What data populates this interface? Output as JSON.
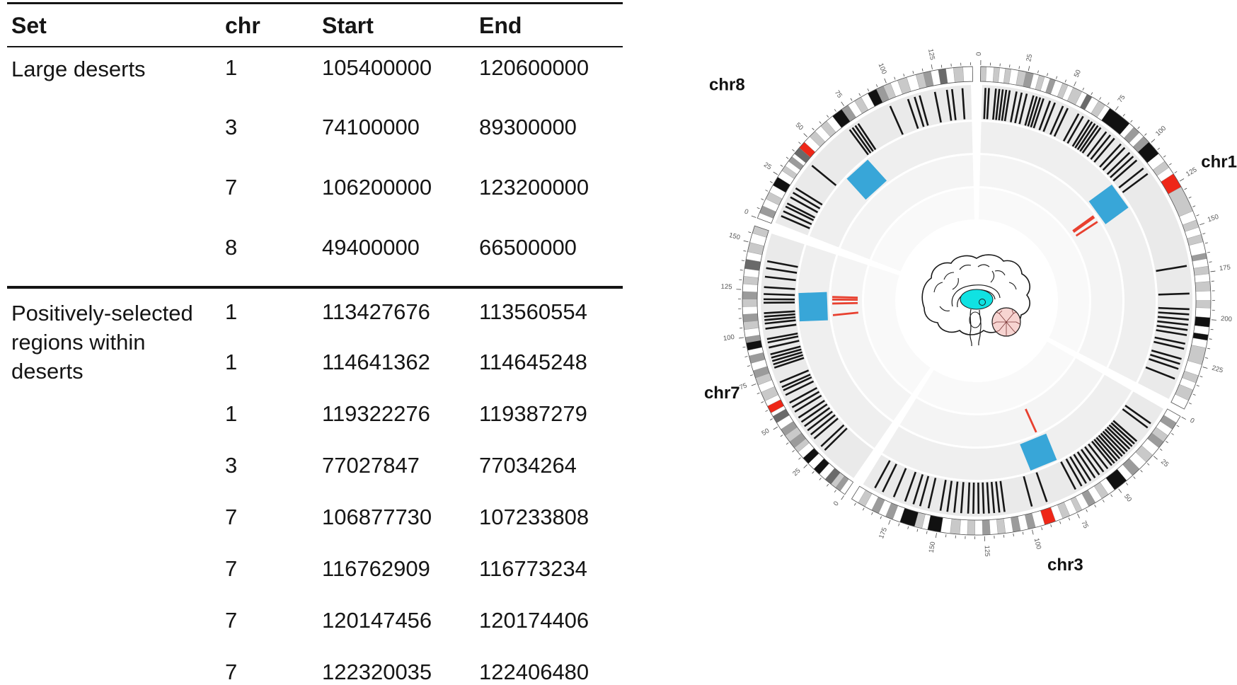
{
  "table": {
    "headers": [
      "Set",
      "chr",
      "Start",
      "End"
    ],
    "groups": [
      {
        "set": "Large deserts",
        "rows": [
          [
            "1",
            "105400000",
            "120600000"
          ],
          [
            "3",
            "74100000",
            "89300000"
          ],
          [
            "7",
            "106200000",
            "123200000"
          ],
          [
            "8",
            "49400000",
            "66500000"
          ]
        ]
      },
      {
        "set": "Positively-selected regions within deserts",
        "rows": [
          [
            "1",
            "113427676",
            "113560554"
          ],
          [
            "1",
            "114641362",
            "114645248"
          ],
          [
            "1",
            "119322276",
            "119387279"
          ],
          [
            "3",
            "77027847",
            "77034264"
          ],
          [
            "7",
            "106877730",
            "107233808"
          ],
          [
            "7",
            "116762909",
            "116773234"
          ],
          [
            "7",
            "120147456",
            "120174406"
          ],
          [
            "7",
            "122320035",
            "122406480"
          ]
        ]
      }
    ]
  },
  "chart_data": {
    "type": "circos",
    "description": "Circular ideogram of human chromosomes 1, 3, 7 and 8, clockwise from top. Tracks outside-in: cytogenetic band ideogram with red centromeres and 25-Mb scale labels; ring of black radial region marks; ring with one blue square per large desert; ring with red radial lines at positively-selected regions; empty inner ring. Center: sagittal brain with thalamus highlighted cyan and cerebellum pink.",
    "direction": "clockwise",
    "start_angle_deg": 0,
    "gap_deg": 2,
    "tick_interval_mb": 5,
    "tick_label_interval_mb": 25,
    "tracks": [
      {
        "name": "ideogram",
        "content": "cytogenetic bands, red centromere"
      },
      {
        "name": "region-marks",
        "content": "black radial tick marks"
      },
      {
        "name": "large-deserts",
        "content": "blue square per desert"
      },
      {
        "name": "selected-regions",
        "content": "red radial lines"
      },
      {
        "name": "inner-ring",
        "content": "empty"
      }
    ],
    "chromosomes": [
      {
        "name": "chr1",
        "length_mb": 249,
        "label_angle_deg": 59.3,
        "label_radius": 369,
        "desert_mb": [
          105.4,
          120.6
        ],
        "selected_mb": [
          113.43,
          114.64,
          119.32
        ],
        "marks_mb": [
          3,
          5,
          9,
          11,
          13,
          15,
          17,
          21,
          24,
          27,
          31,
          33,
          35,
          37,
          41,
          44,
          49,
          52,
          59,
          62,
          66,
          68,
          70,
          72,
          74,
          78,
          81,
          84,
          89,
          92,
          96,
          99,
          102,
          108,
          112,
          170,
          186,
          195,
          198,
          201,
          204,
          207,
          210,
          215,
          218,
          224,
          227,
          230,
          236
        ],
        "bands": [
          [
            0,
            3,
            "l"
          ],
          [
            3,
            7,
            "w"
          ],
          [
            7,
            10,
            "l"
          ],
          [
            10,
            13,
            "w"
          ],
          [
            13,
            16,
            "l"
          ],
          [
            16,
            20,
            "w"
          ],
          [
            20,
            24,
            "l"
          ],
          [
            24,
            28,
            "m"
          ],
          [
            28,
            31,
            "w"
          ],
          [
            31,
            34,
            "l"
          ],
          [
            34,
            37,
            "w"
          ],
          [
            37,
            40,
            "m"
          ],
          [
            40,
            44,
            "w"
          ],
          [
            44,
            47,
            "l"
          ],
          [
            47,
            50,
            "w"
          ],
          [
            50,
            55,
            "l"
          ],
          [
            55,
            58,
            "w"
          ],
          [
            58,
            61,
            "d"
          ],
          [
            61,
            65,
            "w"
          ],
          [
            65,
            69,
            "l"
          ],
          [
            69,
            72,
            "w"
          ],
          [
            72,
            85,
            "b"
          ],
          [
            85,
            88,
            "w"
          ],
          [
            88,
            92,
            "m"
          ],
          [
            92,
            95,
            "w"
          ],
          [
            95,
            99,
            "m"
          ],
          [
            99,
            107,
            "b"
          ],
          [
            107,
            112,
            "w"
          ],
          [
            112,
            116,
            "l"
          ],
          [
            116,
            120,
            "w"
          ],
          [
            120,
            128,
            "r"
          ],
          [
            128,
            142,
            "l"
          ],
          [
            142,
            147,
            "w"
          ],
          [
            147,
            151,
            "l"
          ],
          [
            151,
            155,
            "w"
          ],
          [
            155,
            159,
            "l"
          ],
          [
            159,
            165,
            "w"
          ],
          [
            165,
            168,
            "m"
          ],
          [
            168,
            172,
            "w"
          ],
          [
            172,
            176,
            "l"
          ],
          [
            176,
            180,
            "w"
          ],
          [
            180,
            185,
            "l"
          ],
          [
            185,
            190,
            "w"
          ],
          [
            190,
            194,
            "l"
          ],
          [
            194,
            199,
            "w"
          ],
          [
            199,
            204,
            "b"
          ],
          [
            204,
            208,
            "w"
          ],
          [
            208,
            211,
            "b"
          ],
          [
            211,
            215,
            "w"
          ],
          [
            215,
            224,
            "l"
          ],
          [
            224,
            230,
            "w"
          ],
          [
            230,
            234,
            "l"
          ],
          [
            234,
            238,
            "w"
          ],
          [
            238,
            244,
            "l"
          ],
          [
            244,
            249,
            "w"
          ]
        ]
      },
      {
        "name": "chr3",
        "length_mb": 198,
        "label_angle_deg": 165.3,
        "label_radius": 394,
        "desert_mb": [
          74.1,
          89.3
        ],
        "selected_mb": [
          77.03
        ],
        "marks_mb": [
          12,
          15,
          25,
          27,
          29,
          31,
          33,
          35,
          37,
          39,
          41,
          43,
          45,
          48,
          51,
          54,
          57,
          60,
          63,
          66,
          70,
          88,
          97,
          113,
          116,
          119,
          122,
          125,
          128,
          131,
          134,
          138,
          142,
          146,
          150,
          157,
          162,
          166,
          171,
          178,
          185,
          190
        ],
        "bands": [
          [
            0,
            4,
            "w"
          ],
          [
            4,
            8,
            "m"
          ],
          [
            8,
            12,
            "w"
          ],
          [
            12,
            16,
            "l"
          ],
          [
            16,
            20,
            "m"
          ],
          [
            20,
            25,
            "w"
          ],
          [
            25,
            30,
            "l"
          ],
          [
            30,
            35,
            "w"
          ],
          [
            35,
            40,
            "m"
          ],
          [
            40,
            44,
            "w"
          ],
          [
            44,
            52,
            "b"
          ],
          [
            52,
            56,
            "w"
          ],
          [
            56,
            60,
            "l"
          ],
          [
            60,
            64,
            "w"
          ],
          [
            64,
            68,
            "m"
          ],
          [
            68,
            72,
            "w"
          ],
          [
            72,
            75,
            "l"
          ],
          [
            75,
            79,
            "w"
          ],
          [
            79,
            83,
            "l"
          ],
          [
            83,
            87,
            "w"
          ],
          [
            87,
            93,
            "r"
          ],
          [
            93,
            98,
            "w"
          ],
          [
            98,
            102,
            "m"
          ],
          [
            102,
            106,
            "w"
          ],
          [
            106,
            110,
            "m"
          ],
          [
            110,
            114,
            "w"
          ],
          [
            114,
            118,
            "l"
          ],
          [
            118,
            122,
            "w"
          ],
          [
            122,
            126,
            "m"
          ],
          [
            126,
            130,
            "w"
          ],
          [
            130,
            134,
            "l"
          ],
          [
            134,
            138,
            "w"
          ],
          [
            138,
            143,
            "l"
          ],
          [
            143,
            148,
            "w"
          ],
          [
            148,
            155,
            "b"
          ],
          [
            155,
            158,
            "w"
          ],
          [
            158,
            162,
            "l"
          ],
          [
            162,
            170,
            "b"
          ],
          [
            170,
            174,
            "w"
          ],
          [
            174,
            178,
            "m"
          ],
          [
            178,
            182,
            "w"
          ],
          [
            182,
            186,
            "m"
          ],
          [
            186,
            190,
            "w"
          ],
          [
            190,
            194,
            "l"
          ],
          [
            194,
            198,
            "w"
          ]
        ]
      },
      {
        "name": "chr7",
        "length_mb": 159,
        "label_angle_deg": 250.3,
        "label_radius": 409,
        "desert_mb": [
          106.2,
          123.2
        ],
        "selected_mb": [
          106.88,
          116.76,
          120.15,
          122.32
        ],
        "marks_mb": [
          24,
          27,
          33,
          36,
          39,
          42,
          45,
          48,
          52,
          55,
          58,
          63,
          66,
          68,
          71,
          80,
          82,
          84,
          86,
          88,
          92,
          95,
          97,
          103,
          106,
          108,
          110,
          112,
          118,
          120,
          123,
          127,
          133,
          138,
          142
        ],
        "bands": [
          [
            0,
            3,
            "w"
          ],
          [
            3,
            6,
            "m"
          ],
          [
            6,
            9,
            "l"
          ],
          [
            9,
            13,
            "d"
          ],
          [
            13,
            17,
            "w"
          ],
          [
            17,
            21,
            "b"
          ],
          [
            21,
            25,
            "w"
          ],
          [
            25,
            29,
            "b"
          ],
          [
            29,
            33,
            "w"
          ],
          [
            33,
            36,
            "l"
          ],
          [
            36,
            40,
            "m"
          ],
          [
            40,
            44,
            "l"
          ],
          [
            44,
            48,
            "m"
          ],
          [
            48,
            52,
            "w"
          ],
          [
            52,
            56,
            "d"
          ],
          [
            56,
            58,
            "w"
          ],
          [
            58,
            62,
            "r"
          ],
          [
            62,
            65,
            "w"
          ],
          [
            65,
            70,
            "l"
          ],
          [
            70,
            74,
            "w"
          ],
          [
            74,
            78,
            "l"
          ],
          [
            78,
            82,
            "m"
          ],
          [
            82,
            86,
            "w"
          ],
          [
            86,
            90,
            "m"
          ],
          [
            90,
            93,
            "w"
          ],
          [
            93,
            97,
            "b"
          ],
          [
            97,
            100,
            "m"
          ],
          [
            100,
            104,
            "w"
          ],
          [
            104,
            108,
            "l"
          ],
          [
            108,
            112,
            "m"
          ],
          [
            112,
            116,
            "w"
          ],
          [
            116,
            120,
            "l"
          ],
          [
            120,
            124,
            "m"
          ],
          [
            124,
            128,
            "w"
          ],
          [
            128,
            132,
            "l"
          ],
          [
            132,
            136,
            "w"
          ],
          [
            136,
            141,
            "d"
          ],
          [
            141,
            145,
            "w"
          ],
          [
            145,
            150,
            "l"
          ],
          [
            150,
            155,
            "w"
          ],
          [
            155,
            159,
            "l"
          ]
        ]
      },
      {
        "name": "chr8",
        "length_mb": 146,
        "label_angle_deg": 308.2,
        "label_radius": 481,
        "desert_mb": [
          49.4,
          66.5
        ],
        "selected_mb": [],
        "marks_mb": [
          6,
          9,
          12,
          14,
          18,
          21,
          24,
          40,
          70,
          72,
          74,
          76,
          97,
          108,
          112,
          115,
          124,
          131,
          134,
          140
        ],
        "bands": [
          [
            0,
            3,
            "w"
          ],
          [
            3,
            7,
            "m"
          ],
          [
            7,
            11,
            "w"
          ],
          [
            11,
            15,
            "l"
          ],
          [
            15,
            19,
            "w"
          ],
          [
            19,
            24,
            "b"
          ],
          [
            24,
            28,
            "w"
          ],
          [
            28,
            31,
            "l"
          ],
          [
            31,
            34,
            "w"
          ],
          [
            34,
            37,
            "m"
          ],
          [
            37,
            39,
            "w"
          ],
          [
            39,
            43,
            "d"
          ],
          [
            43,
            47,
            "r"
          ],
          [
            47,
            51,
            "w"
          ],
          [
            51,
            55,
            "l"
          ],
          [
            55,
            59,
            "w"
          ],
          [
            59,
            63,
            "l"
          ],
          [
            63,
            67,
            "w"
          ],
          [
            67,
            73,
            "b"
          ],
          [
            73,
            77,
            "m"
          ],
          [
            77,
            81,
            "w"
          ],
          [
            81,
            85,
            "l"
          ],
          [
            85,
            89,
            "w"
          ],
          [
            89,
            94,
            "b"
          ],
          [
            94,
            98,
            "m"
          ],
          [
            98,
            102,
            "l"
          ],
          [
            102,
            106,
            "w"
          ],
          [
            106,
            111,
            "l"
          ],
          [
            111,
            116,
            "w"
          ],
          [
            116,
            120,
            "l"
          ],
          [
            120,
            124,
            "m"
          ],
          [
            124,
            128,
            "w"
          ],
          [
            128,
            132,
            "d"
          ],
          [
            132,
            136,
            "w"
          ],
          [
            136,
            141,
            "l"
          ],
          [
            141,
            146,
            "w"
          ]
        ]
      }
    ],
    "colors": {
      "desert_blue": "#38A6D8",
      "selected_red": "#E8402F",
      "centromere_red": "#EE2718",
      "mark_black": "#161616",
      "ring_fills": [
        "#EAEAEA",
        "#EFEFEF",
        "#F4F4F4",
        "#F9F9F9"
      ],
      "band_shades": {
        "w": "#FFFFFF",
        "l": "#C9C9C9",
        "m": "#9B9B9B",
        "d": "#6A6A6A",
        "b": "#111111",
        "r": "#EE2718"
      },
      "brain": {
        "outline": "#1a1a1a",
        "thalamus": "#10E2E2",
        "cerebellum_fill": "#F7D4D1",
        "cerebellum_lines": "#7A3535"
      }
    },
    "center_illustration": "sagittal human brain, thalamus highlighted cyan, cerebellum pink"
  }
}
